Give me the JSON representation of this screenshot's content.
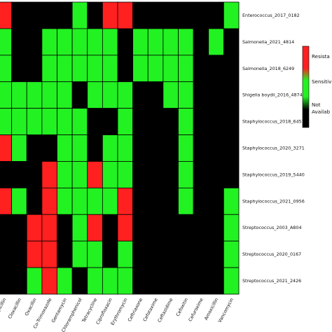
{
  "chart_data": {
    "type": "heatmap",
    "rows": [
      "Enterococcus_2017_0182",
      "Salmonella_2021_4814",
      "Salmonella_2018_6249",
      "Shigella boydii_2016_4874",
      "Staphylococcus_2018_6451",
      "Staphylococcus_2020_3271",
      "Staphylococcus_2019_5440",
      "Staphylococcus_2021_0956",
      "Streptococcus_2003_A804",
      "Streptococcus_2020_0167",
      "Streptococcus_2021_2426"
    ],
    "columns": [
      "Ampicillin",
      "Cloxacillin",
      "Oxacillin",
      "Co-Trimoxazole",
      "Gentamycin",
      "Chloramphenicol",
      "Tetracycline",
      "Ciprofloxacin",
      "Erythromycin",
      "Ceftriaxone",
      "Cefotaxime",
      "Ceftazidime",
      "Cefoxitin",
      "Cefuroxime",
      "Amoxicillin",
      "Vancomycin"
    ],
    "values": [
      [
        "R",
        "N",
        "N",
        "N",
        "N",
        "S",
        "N",
        "R",
        "R",
        "N",
        "N",
        "N",
        "N",
        "N",
        "N",
        "S"
      ],
      [
        "S",
        "N",
        "N",
        "S",
        "S",
        "S",
        "S",
        "S",
        "N",
        "S",
        "S",
        "S",
        "S",
        "N",
        "S",
        "N"
      ],
      [
        "S",
        "N",
        "N",
        "S",
        "S",
        "S",
        "S",
        "S",
        "N",
        "S",
        "S",
        "S",
        "S",
        "N",
        "N",
        "N"
      ],
      [
        "S",
        "S",
        "S",
        "S",
        "S",
        "N",
        "S",
        "S",
        "S",
        "N",
        "N",
        "S",
        "S",
        "N",
        "N",
        "N"
      ],
      [
        "S",
        "S",
        "S",
        "S",
        "S",
        "S",
        "N",
        "N",
        "S",
        "N",
        "N",
        "N",
        "S",
        "N",
        "N",
        "N"
      ],
      [
        "R",
        "S",
        "N",
        "N",
        "S",
        "S",
        "N",
        "S",
        "S",
        "N",
        "N",
        "N",
        "S",
        "N",
        "N",
        "N"
      ],
      [
        "N",
        "N",
        "N",
        "R",
        "S",
        "S",
        "R",
        "S",
        "S",
        "N",
        "N",
        "N",
        "S",
        "N",
        "N",
        "N"
      ],
      [
        "R",
        "S",
        "N",
        "R",
        "S",
        "S",
        "S",
        "S",
        "R",
        "N",
        "N",
        "N",
        "S",
        "N",
        "N",
        "S"
      ],
      [
        "N",
        "N",
        "R",
        "R",
        "N",
        "S",
        "R",
        "N",
        "R",
        "N",
        "N",
        "N",
        "N",
        "N",
        "N",
        "S"
      ],
      [
        "N",
        "N",
        "R",
        "R",
        "N",
        "S",
        "S",
        "N",
        "S",
        "N",
        "N",
        "N",
        "N",
        "N",
        "N",
        "S"
      ],
      [
        "N",
        "N",
        "S",
        "R",
        "S",
        "N",
        "S",
        "S",
        "S",
        "N",
        "N",
        "N",
        "N",
        "N",
        "N",
        "S"
      ]
    ],
    "legend": [
      {
        "key": "R",
        "label": "Resistant",
        "color": "#ff2020"
      },
      {
        "key": "S",
        "label": "Sensitive",
        "color": "#22f222"
      },
      {
        "key": "N",
        "label": "Not Available",
        "color": "#000000"
      }
    ],
    "legend_placement": "right",
    "grid": true
  },
  "legend_text": {
    "resistant": "Resista",
    "sensitive": "Sensitiv",
    "not_available_1": "Not",
    "not_available_2": "Availab"
  }
}
